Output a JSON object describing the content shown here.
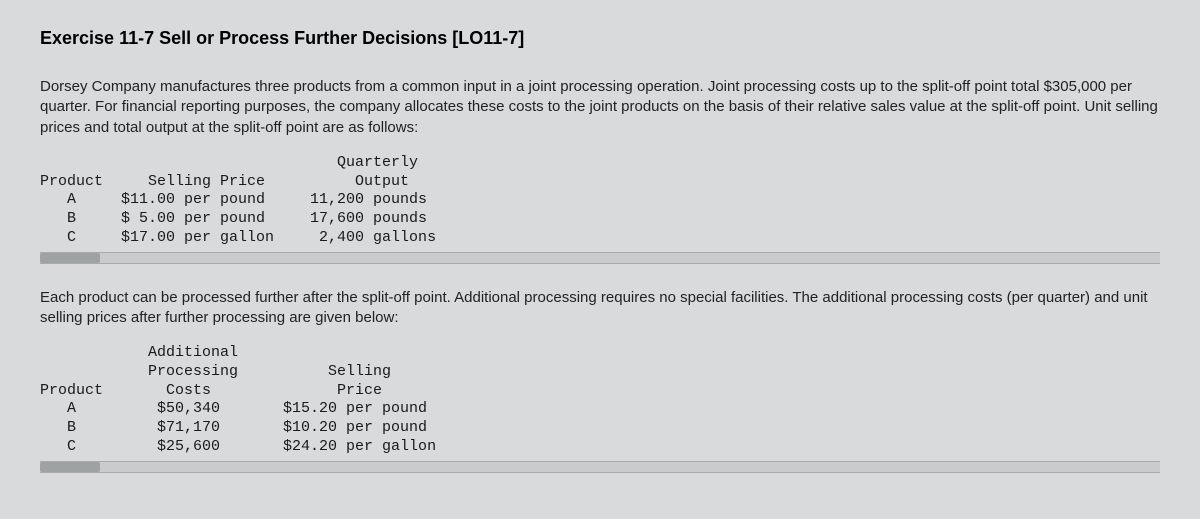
{
  "heading": "Exercise 11-7 Sell or Process Further Decisions [LO11-7]",
  "para1": "Dorsey Company manufactures three products from a common input in a joint processing operation. Joint processing costs up to the split-off point total $305,000 per quarter. For financial reporting purposes, the company allocates these costs to the joint products on the basis of their relative sales value at the split-off point. Unit selling prices and total output at the split-off point are as follows:",
  "table1": {
    "header_line1": "                                 Quarterly",
    "header_line2": "Product     Selling Price          Output",
    "rows": [
      "   A     $11.00 per pound     11,200 pounds",
      "   B     $ 5.00 per pound     17,600 pounds",
      "   C     $17.00 per gallon     2,400 gallons"
    ]
  },
  "para2": "Each product can be processed further after the split-off point. Additional processing requires no special facilities. The additional processing costs (per quarter) and unit selling prices after further processing are given below:",
  "table2": {
    "header_line1": "            Additional",
    "header_line2": "            Processing          Selling",
    "header_line3": "Product       Costs              Price",
    "rows": [
      "   A         $50,340       $15.20 per pound",
      "   B         $71,170       $10.20 per pound",
      "   C         $25,600       $24.20 per gallon"
    ]
  }
}
